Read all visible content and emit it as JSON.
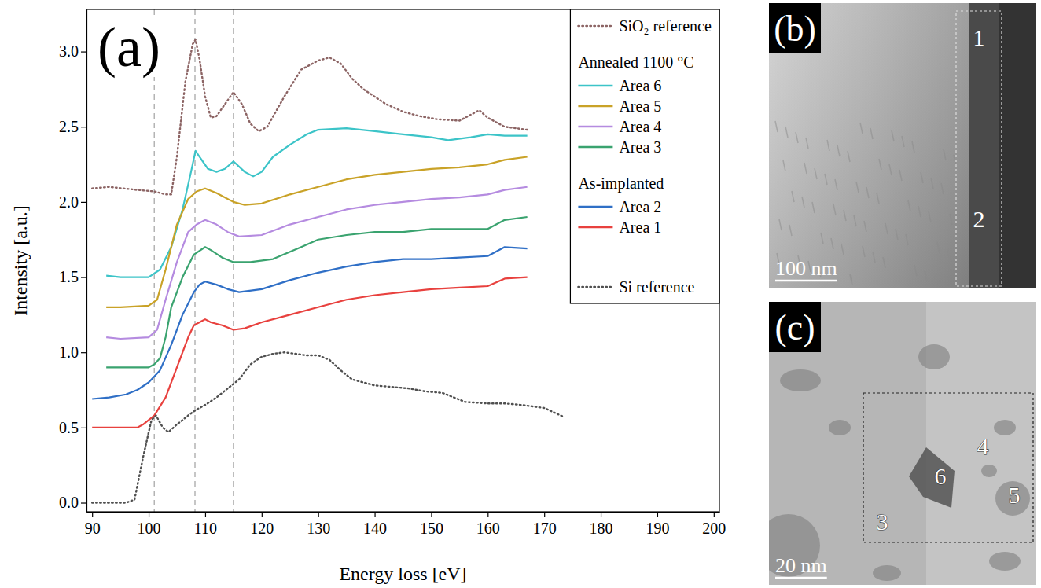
{
  "chart_data": {
    "type": "line",
    "panel_label": "(a)",
    "x_label": "Energy loss [eV]",
    "y_label": "Intensity [a.u.]",
    "xlim": [
      89,
      201
    ],
    "ylim": [
      -0.06,
      3.28
    ],
    "xticks": [
      90,
      100,
      110,
      120,
      130,
      140,
      150,
      160,
      170,
      180,
      190,
      200
    ],
    "yticks": [
      {
        "value": 0,
        "label": "0.0"
      },
      {
        "value": 0.5,
        "label": "0.5"
      },
      {
        "value": 1,
        "label": "1.0"
      },
      {
        "value": 1.5,
        "label": "1.5"
      },
      {
        "value": 2,
        "label": "2.0"
      },
      {
        "value": 2.5,
        "label": "2.5"
      },
      {
        "value": 3,
        "label": "3.0"
      }
    ],
    "grid": false,
    "legend": "upper right",
    "vlines": [
      101,
      108.2,
      115
    ],
    "series": [
      {
        "name": "SiO₂ reference",
        "color": "#8c6464",
        "line_style": "dotted",
        "x": [
          90,
          93,
          98,
          101,
          103,
          104,
          105,
          106.5,
          107.8,
          108.3,
          109,
          110,
          111,
          112,
          113.5,
          115,
          116.5,
          118,
          119.5,
          121,
          124,
          127,
          130,
          132,
          134,
          136,
          138,
          140,
          142,
          145,
          148,
          151,
          155,
          157,
          158.5,
          160,
          163,
          167
        ],
        "values": [
          2.09,
          2.1,
          2.08,
          2.07,
          2.05,
          2.05,
          2.3,
          2.8,
          3.05,
          3.08,
          2.95,
          2.7,
          2.56,
          2.57,
          2.65,
          2.73,
          2.65,
          2.52,
          2.47,
          2.5,
          2.7,
          2.88,
          2.94,
          2.96,
          2.92,
          2.82,
          2.75,
          2.7,
          2.65,
          2.6,
          2.57,
          2.55,
          2.54,
          2.58,
          2.61,
          2.56,
          2.5,
          2.48
        ]
      },
      {
        "name": "Area 6",
        "group": "Annealed 1100 °C",
        "color": "#3cc4c8",
        "line_style": "solid",
        "x": [
          92.5,
          95,
          100,
          102,
          104,
          106,
          107.5,
          108.3,
          109,
          110.5,
          112,
          113.5,
          115,
          117,
          118.5,
          120,
          122,
          125,
          128,
          130,
          135,
          140,
          145,
          150,
          153,
          157,
          160,
          163,
          167
        ],
        "values": [
          1.51,
          1.5,
          1.5,
          1.55,
          1.7,
          1.95,
          2.2,
          2.34,
          2.3,
          2.22,
          2.2,
          2.22,
          2.27,
          2.2,
          2.17,
          2.2,
          2.3,
          2.38,
          2.45,
          2.48,
          2.49,
          2.47,
          2.45,
          2.43,
          2.41,
          2.43,
          2.45,
          2.44,
          2.44
        ]
      },
      {
        "name": "Area 5",
        "group": "Annealed 1100 °C",
        "color": "#c9a227",
        "line_style": "solid",
        "x": [
          92.5,
          95,
          100,
          101.5,
          103,
          105,
          107,
          108.5,
          110,
          112,
          115,
          117,
          120,
          125,
          130,
          135,
          140,
          145,
          150,
          155,
          160,
          163,
          167
        ],
        "values": [
          1.3,
          1.3,
          1.31,
          1.35,
          1.55,
          1.85,
          2.02,
          2.07,
          2.09,
          2.06,
          2.0,
          1.98,
          1.99,
          2.05,
          2.1,
          2.15,
          2.18,
          2.2,
          2.22,
          2.23,
          2.25,
          2.28,
          2.3
        ]
      },
      {
        "name": "Area 4",
        "group": "Annealed 1100 °C",
        "color": "#b58be0",
        "line_style": "solid",
        "x": [
          92.5,
          95,
          100,
          101.5,
          103,
          105,
          107,
          108.5,
          110,
          112,
          114,
          116,
          120,
          125,
          130,
          135,
          140,
          145,
          150,
          155,
          160,
          163,
          167
        ],
        "values": [
          1.1,
          1.09,
          1.1,
          1.15,
          1.35,
          1.6,
          1.8,
          1.85,
          1.88,
          1.85,
          1.8,
          1.77,
          1.78,
          1.85,
          1.9,
          1.95,
          1.98,
          2.0,
          2.02,
          2.03,
          2.05,
          2.08,
          2.1
        ]
      },
      {
        "name": "Area 3",
        "group": "Annealed 1100 °C",
        "color": "#3aa36f",
        "line_style": "solid",
        "x": [
          92.5,
          95,
          100,
          101,
          102,
          103,
          104,
          106,
          108,
          110,
          111,
          113,
          115,
          118,
          122,
          127,
          130,
          135,
          140,
          145,
          150,
          155,
          160,
          163,
          167
        ],
        "values": [
          0.9,
          0.9,
          0.9,
          0.92,
          0.96,
          1.1,
          1.3,
          1.5,
          1.65,
          1.7,
          1.68,
          1.63,
          1.6,
          1.6,
          1.62,
          1.7,
          1.75,
          1.78,
          1.8,
          1.8,
          1.82,
          1.82,
          1.82,
          1.88,
          1.9
        ]
      },
      {
        "name": "Area 2",
        "group": "As-implanted",
        "color": "#2f6fc6",
        "line_style": "solid",
        "x": [
          90,
          93,
          96,
          98,
          100,
          102,
          104,
          106,
          108,
          109,
          110,
          112,
          114,
          116,
          120,
          125,
          130,
          135,
          140,
          145,
          150,
          155,
          160,
          163,
          167
        ],
        "values": [
          0.69,
          0.7,
          0.72,
          0.75,
          0.8,
          0.88,
          1.05,
          1.25,
          1.4,
          1.45,
          1.47,
          1.45,
          1.42,
          1.4,
          1.42,
          1.48,
          1.53,
          1.57,
          1.6,
          1.62,
          1.62,
          1.63,
          1.64,
          1.7,
          1.69
        ]
      },
      {
        "name": "Area 1",
        "group": "As-implanted",
        "color": "#e8413e",
        "line_style": "solid",
        "x": [
          90,
          95,
          98,
          99,
          101,
          103,
          105,
          107,
          108,
          109,
          110,
          111,
          113,
          115,
          117,
          120,
          125,
          130,
          135,
          140,
          145,
          150,
          155,
          160,
          163,
          167
        ],
        "values": [
          0.5,
          0.5,
          0.5,
          0.52,
          0.58,
          0.7,
          0.9,
          1.1,
          1.18,
          1.2,
          1.22,
          1.2,
          1.18,
          1.15,
          1.16,
          1.2,
          1.25,
          1.3,
          1.35,
          1.38,
          1.4,
          1.42,
          1.43,
          1.44,
          1.49,
          1.5
        ]
      },
      {
        "name": "Si reference",
        "color": "#505050",
        "line_style": "dotted",
        "x": [
          90,
          96,
          97.5,
          99,
          100.5,
          101.3,
          102.5,
          103.5,
          105,
          107,
          108.5,
          110,
          112,
          114,
          116,
          118,
          120,
          122,
          124,
          126,
          128,
          130,
          132,
          134,
          136,
          138,
          140,
          143,
          146,
          149,
          152,
          154,
          156,
          160,
          163,
          166,
          170,
          173.5
        ],
        "values": [
          0,
          0,
          0.02,
          0.3,
          0.55,
          0.58,
          0.5,
          0.47,
          0.52,
          0.58,
          0.62,
          0.65,
          0.7,
          0.76,
          0.82,
          0.92,
          0.97,
          0.99,
          1.0,
          0.99,
          0.98,
          0.98,
          0.95,
          0.88,
          0.82,
          0.8,
          0.78,
          0.77,
          0.76,
          0.74,
          0.73,
          0.7,
          0.67,
          0.66,
          0.66,
          0.65,
          0.63,
          0.57
        ]
      }
    ]
  },
  "image_panels": [
    {
      "label": "(b)",
      "scale_bar": "100 nm",
      "areas": [
        "1",
        "2"
      ]
    },
    {
      "label": "(c)",
      "scale_bar": "20 nm",
      "areas": [
        "3",
        "4",
        "5",
        "6"
      ]
    }
  ]
}
